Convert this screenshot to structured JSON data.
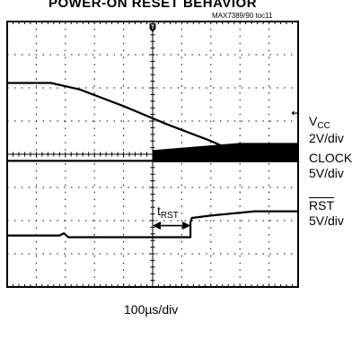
{
  "title": "POWER-ON RESET BEHAVIOR",
  "figure_ref": "MAX7389/90 toc11",
  "chart_data": {
    "type": "line",
    "grid": true,
    "time_per_div": "100µs/div",
    "x_divisions": 10,
    "y_divisions": 8,
    "trigger_marker": "T",
    "series": [
      {
        "name": "VCC",
        "name_main": "V",
        "name_sub": "CC",
        "scale": "2V/div",
        "color": "#000000",
        "points": [
          [
            0,
            1.85
          ],
          [
            1.5,
            1.85
          ],
          [
            2.5,
            2.05
          ],
          [
            4,
            2.55
          ],
          [
            5.5,
            3.1
          ],
          [
            7,
            3.6
          ],
          [
            8.3,
            4.1
          ],
          [
            9.5,
            4.2
          ],
          [
            10,
            4.2
          ]
        ]
      },
      {
        "name": "CLOCK",
        "scale": "5V/div",
        "color": "#000000",
        "baseline_div": 4.2,
        "burst_start_div": 5.0,
        "burst_top_start_div": 5.0,
        "burst_top_end_div": 5.5
      },
      {
        "name": "RST",
        "name_overline": true,
        "scale": "5V/div",
        "color": "#000000",
        "points": [
          [
            0,
            6.45
          ],
          [
            1.8,
            6.45
          ],
          [
            1.95,
            6.38
          ],
          [
            2.1,
            6.5
          ],
          [
            6.3,
            6.5
          ],
          [
            6.3,
            6.05
          ],
          [
            6.35,
            5.92
          ],
          [
            7,
            5.85
          ],
          [
            8.5,
            5.72
          ],
          [
            10,
            5.72
          ]
        ]
      }
    ],
    "annotation": {
      "main": "t",
      "sub": "RST",
      "from_div": 5.0,
      "to_div": 6.3,
      "level_div": 6.15
    },
    "right_marker": "←"
  }
}
